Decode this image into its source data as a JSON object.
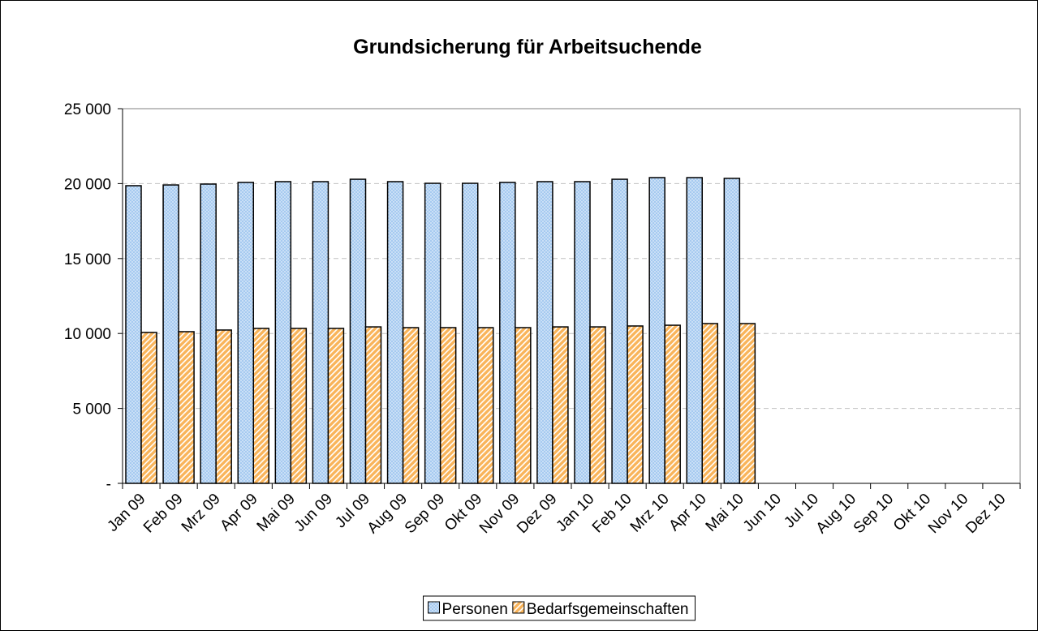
{
  "chart_data": {
    "type": "bar",
    "title": "Grundsicherung für Arbeitsuchende",
    "categories": [
      "Jan 09",
      "Feb 09",
      "Mrz 09",
      "Apr 09",
      "Mai 09",
      "Jun 09",
      "Jul 09",
      "Aug 09",
      "Sep 09",
      "Okt 09",
      "Nov 09",
      "Dez 09",
      "Jan 10",
      "Feb 10",
      "Mrz 10",
      "Apr 10",
      "Mai 10",
      "Jun 10",
      "Jul 10",
      "Aug 10",
      "Sep 10",
      "Okt 10",
      "Nov 10",
      "Dez 10"
    ],
    "series": [
      {
        "name": "Personen",
        "color": "#a6caf0",
        "values": [
          19860,
          19910,
          19970,
          20080,
          20130,
          20130,
          20290,
          20130,
          20020,
          20020,
          20080,
          20130,
          20130,
          20290,
          20400,
          20400,
          20350,
          null,
          null,
          null,
          null,
          null,
          null,
          null
        ]
      },
      {
        "name": "Bedarfsgemeinschaften",
        "color": "#f9b45a",
        "values": [
          10070,
          10120,
          10230,
          10340,
          10340,
          10340,
          10440,
          10390,
          10390,
          10390,
          10390,
          10440,
          10440,
          10500,
          10550,
          10660,
          10660,
          null,
          null,
          null,
          null,
          null,
          null,
          null
        ]
      }
    ],
    "ylim": [
      0,
      25000
    ],
    "yticks": [
      {
        "value": 0,
        "label": "-"
      },
      {
        "value": 5000,
        "label": "5 000"
      },
      {
        "value": 10000,
        "label": "10 000"
      },
      {
        "value": 15000,
        "label": "15 000"
      },
      {
        "value": 20000,
        "label": "20 000"
      },
      {
        "value": 25000,
        "label": "25 000"
      }
    ],
    "grid": true,
    "legend": "bottom"
  }
}
